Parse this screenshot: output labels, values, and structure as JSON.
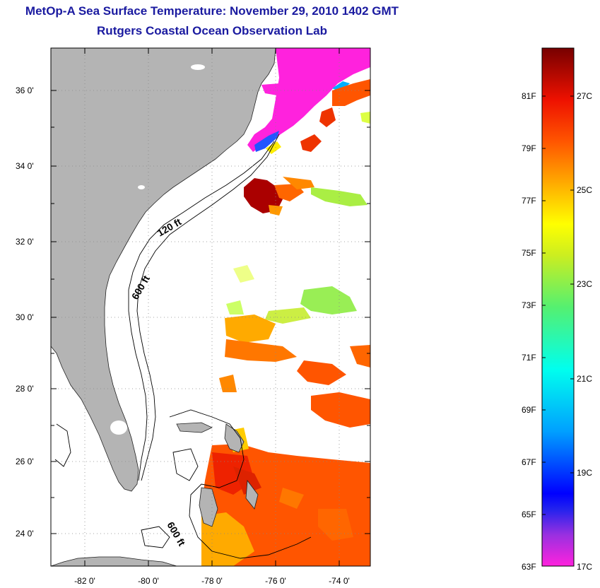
{
  "header": {
    "title": "MetOp-A Sea Surface Temperature:  November 29, 2010 1402 GMT",
    "subtitle": "Rutgers Coastal Ocean Observation Lab"
  },
  "map": {
    "lat_labels": [
      "36 0'",
      "34 0'",
      "32 0'",
      "30 0'",
      "28 0'",
      "26 0'",
      "24 0'"
    ],
    "lon_labels": [
      "-82 0'",
      "-80 0'",
      "-78 0'",
      "-76 0'",
      "-74 0'"
    ],
    "contour_labels": [
      "120 ft",
      "600 ft",
      "600 ft"
    ]
  },
  "colorbar": {
    "fahrenheit_labels": [
      "81F",
      "79F",
      "77F",
      "75F",
      "73F",
      "71F",
      "69F",
      "67F",
      "65F",
      "63F"
    ],
    "celsius_labels": [
      "27C",
      "25C",
      "23C",
      "21C",
      "19C",
      "17C"
    ],
    "colors": [
      "#ff22dd",
      "#7a2de0",
      "#0000ff",
      "#00b0ff",
      "#00ffee",
      "#40f080",
      "#ccee20",
      "#ffff00",
      "#ffaa00",
      "#ff5500",
      "#ee1100",
      "#aa0000",
      "#770000"
    ]
  }
}
